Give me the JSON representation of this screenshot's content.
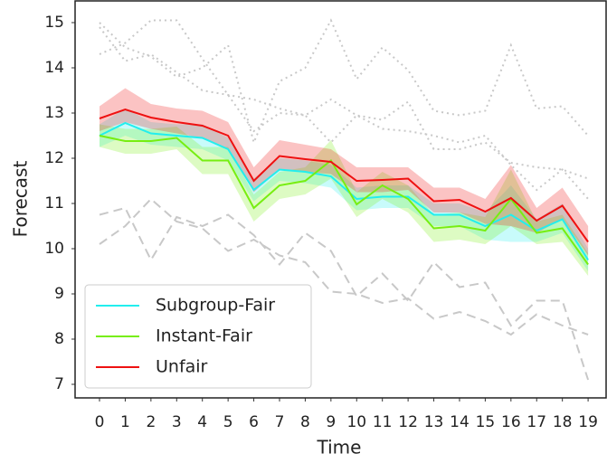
{
  "chart_data": {
    "type": "line",
    "x_label": "Time",
    "y_label": "Forecast",
    "xlim": [
      -0.95,
      19.7
    ],
    "ylim": [
      6.7,
      15.48
    ],
    "xticks": [
      0,
      1,
      2,
      3,
      4,
      5,
      6,
      7,
      8,
      9,
      10,
      11,
      12,
      13,
      14,
      15,
      16,
      17,
      18,
      19
    ],
    "yticks": [
      7,
      8,
      9,
      10,
      11,
      12,
      13,
      14,
      15
    ],
    "x": [
      0,
      1,
      2,
      3,
      4,
      5,
      6,
      7,
      8,
      9,
      10,
      11,
      12,
      13,
      14,
      15,
      16,
      17,
      18,
      19
    ],
    "legend": "lower left",
    "series": [
      {
        "color": "#c8c8c8",
        "style": "dotted",
        "values": [
          15.0,
          14.45,
          14.25,
          13.8,
          14.0,
          14.5,
          12.35,
          13.7,
          14.0,
          15.05,
          13.75,
          14.45,
          13.95,
          13.05,
          12.95,
          13.05,
          14.5,
          13.1,
          13.15,
          12.5
        ]
      },
      {
        "color": "#c8c8c8",
        "style": "dotted",
        "values": [
          14.3,
          14.55,
          15.05,
          15.05,
          14.2,
          13.4,
          12.6,
          13.0,
          12.95,
          13.3,
          12.95,
          12.85,
          13.25,
          12.2,
          12.2,
          12.35,
          11.9,
          11.8,
          11.75,
          11.55
        ]
      },
      {
        "color": "#c8c8c8",
        "style": "dotted",
        "values": [
          14.9,
          14.15,
          14.3,
          13.9,
          13.5,
          13.4,
          13.3,
          13.1,
          12.95,
          12.35,
          12.95,
          12.65,
          12.6,
          12.5,
          12.35,
          12.5,
          11.85,
          11.3,
          11.75,
          11.1
        ]
      },
      {
        "color": "#c8c8c8",
        "style": "dashed",
        "values": [
          10.75,
          10.9,
          9.75,
          10.7,
          10.5,
          10.75,
          10.3,
          9.65,
          10.35,
          9.95,
          8.95,
          9.45,
          8.85,
          9.7,
          9.15,
          9.25,
          8.3,
          8.85,
          8.85,
          7.1
        ]
      },
      {
        "color": "#c8c8c8",
        "style": "dashed",
        "values": [
          10.1,
          10.5,
          11.1,
          10.6,
          10.45,
          9.95,
          10.2,
          9.85,
          9.7,
          9.05,
          9.0,
          8.8,
          8.9,
          8.45,
          8.6,
          8.4,
          8.1,
          8.55,
          8.3,
          8.1
        ]
      },
      {
        "name": "Subgroup-Fair",
        "color": "#22eeee",
        "style": "solid",
        "values": [
          12.5,
          12.78,
          12.55,
          12.5,
          12.45,
          12.2,
          11.3,
          11.75,
          11.7,
          11.6,
          11.1,
          11.15,
          11.15,
          10.75,
          10.75,
          10.5,
          10.75,
          10.4,
          10.65,
          9.75
        ],
        "lower": [
          12.25,
          12.5,
          12.3,
          12.25,
          12.2,
          11.95,
          11.05,
          11.5,
          11.45,
          11.35,
          10.85,
          10.9,
          10.9,
          10.5,
          10.5,
          10.2,
          10.15,
          10.15,
          10.35,
          9.5
        ],
        "upper": [
          12.75,
          13.1,
          12.8,
          12.75,
          12.75,
          12.45,
          11.55,
          12.0,
          11.95,
          11.85,
          11.35,
          11.4,
          11.4,
          11.0,
          11.0,
          10.8,
          11.4,
          10.65,
          11.0,
          10.0
        ]
      },
      {
        "name": "Instant-Fair",
        "color": "#77ee11",
        "style": "solid",
        "values": [
          12.5,
          12.38,
          12.38,
          12.45,
          11.95,
          11.95,
          10.9,
          11.4,
          11.5,
          11.95,
          10.98,
          11.4,
          11.1,
          10.45,
          10.5,
          10.4,
          11.1,
          10.35,
          10.45,
          9.65
        ],
        "lower": [
          12.25,
          12.1,
          12.1,
          12.2,
          11.65,
          11.65,
          10.6,
          11.1,
          11.2,
          11.55,
          10.7,
          11.1,
          10.8,
          10.15,
          10.2,
          10.1,
          10.5,
          10.1,
          10.15,
          9.4
        ],
        "upper": [
          12.75,
          12.65,
          12.65,
          12.7,
          12.25,
          12.25,
          11.2,
          11.7,
          11.8,
          12.4,
          11.25,
          11.7,
          11.4,
          10.75,
          10.8,
          10.7,
          11.75,
          10.6,
          10.75,
          9.9
        ]
      },
      {
        "name": "Unfair",
        "color": "#ee1111",
        "style": "solid",
        "values": [
          12.88,
          13.08,
          12.9,
          12.8,
          12.72,
          12.5,
          11.5,
          12.05,
          11.98,
          11.92,
          11.5,
          11.52,
          11.55,
          11.05,
          11.08,
          10.82,
          11.12,
          10.62,
          10.95,
          10.15
        ],
        "lower": [
          12.6,
          12.8,
          12.65,
          12.55,
          12.45,
          12.2,
          11.25,
          11.75,
          11.7,
          11.65,
          11.25,
          11.25,
          11.3,
          10.8,
          10.8,
          10.55,
          10.5,
          10.35,
          10.65,
          9.85
        ],
        "upper": [
          13.15,
          13.55,
          13.2,
          13.1,
          13.05,
          12.8,
          11.8,
          12.4,
          12.3,
          12.2,
          11.8,
          11.8,
          11.8,
          11.35,
          11.35,
          11.1,
          11.85,
          10.9,
          11.35,
          10.5
        ]
      }
    ]
  }
}
